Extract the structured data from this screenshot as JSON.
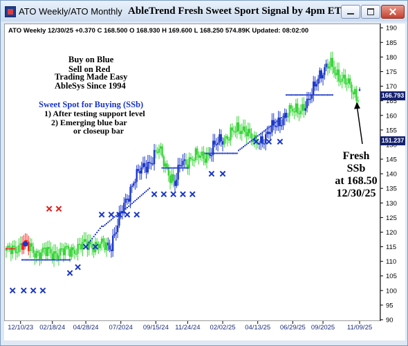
{
  "window": {
    "title": "ATO Weekly/ATO Monthly",
    "chart_title": "AbleTrend Fresh Sweet Sport Signal by 4pm ET"
  },
  "header": "ATO  Weekly 12/30/25 +0.370 C 168.500 O 168.930 H 169.600 L 168.250 574.89K Updated: 08:02:00",
  "legend": [
    {
      "text": "Buy on Blue",
      "color": "#1a36c8"
    },
    {
      "text": "Sell on Red",
      "color": "#e02020"
    },
    {
      "text": "Trading Made Easy",
      "color": "#2e9a2e"
    },
    {
      "text": "AbleSys Since 1994",
      "color": "#2e9a2e"
    }
  ],
  "sweet_spot": {
    "title": "Sweet Spot for Buying (SSb)",
    "lines": [
      "1) After testing support level",
      "2) Emerging blue bar",
      "or closeup bar"
    ]
  },
  "annotation": {
    "lines": [
      "Fresh",
      "SSb",
      "at 168.50",
      "12/30/25"
    ]
  },
  "price_labels": [
    {
      "text": "166.793",
      "value": 166.793
    },
    {
      "text": "151.237",
      "value": 151.237
    }
  ],
  "colors": {
    "up": "#1a36c8",
    "down": "#ff2020",
    "neutral": "#39d439",
    "cross_buy": "#1a36c8",
    "cross_sell": "#e02020"
  },
  "chart_data": {
    "type": "candlestick",
    "yticks": [
      90,
      95,
      100,
      105,
      110,
      115,
      120,
      125,
      130,
      135,
      140,
      145,
      150,
      155,
      160,
      165,
      170,
      175,
      180,
      185,
      190
    ],
    "ylim": [
      90,
      191
    ],
    "xlabels": [
      "12/10/23",
      "02/18/24",
      "04/28/24",
      "07/2024",
      "09/15/24",
      "11/24/24",
      "02/02/25",
      "04/13/25",
      "06/29/25",
      "09/2025",
      "11/09/25"
    ],
    "anchors": [
      [
        0,
        113
      ],
      [
        10,
        116
      ],
      [
        20,
        113
      ],
      [
        35,
        113
      ],
      [
        52,
        116
      ],
      [
        65,
        115
      ],
      [
        80,
        138
      ],
      [
        96,
        148
      ],
      [
        106,
        136
      ],
      [
        110,
        144
      ],
      [
        128,
        147
      ],
      [
        135,
        152
      ],
      [
        150,
        156
      ],
      [
        156,
        150
      ],
      [
        165,
        154
      ],
      [
        175,
        160
      ],
      [
        190,
        164
      ],
      [
        196,
        174
      ],
      [
        204,
        177
      ],
      [
        212,
        172
      ],
      [
        220,
        167
      ]
    ],
    "sell_crosses": [
      [
        27,
        128
      ],
      [
        33,
        128
      ]
    ],
    "buy_crosses": [
      [
        4,
        100
      ],
      [
        11,
        100
      ],
      [
        17,
        100
      ],
      [
        23,
        100
      ],
      [
        40,
        106
      ],
      [
        45,
        108
      ],
      [
        50,
        115
      ],
      [
        56,
        115
      ],
      [
        60,
        126
      ],
      [
        66,
        126
      ],
      [
        71,
        126
      ],
      [
        76,
        126
      ],
      [
        82,
        126
      ],
      [
        93,
        133
      ],
      [
        99,
        133
      ],
      [
        105,
        133
      ],
      [
        111,
        133
      ],
      [
        117,
        133
      ],
      [
        129,
        140
      ],
      [
        136,
        140
      ],
      [
        157,
        151
      ],
      [
        165,
        151
      ],
      [
        172,
        151
      ]
    ],
    "support_segments": [
      [
        10,
        40,
        110.5
      ],
      [
        98,
        114,
        142
      ],
      [
        125,
        145,
        147
      ],
      [
        176,
        205,
        167
      ]
    ],
    "support_ramps": [
      [
        50,
        115,
        60,
        122
      ],
      [
        61,
        122,
        72,
        127
      ],
      [
        73,
        127,
        90,
        135
      ],
      [
        146,
        148,
        175,
        160
      ]
    ],
    "last": {
      "open": 168.93,
      "high": 169.6,
      "low": 168.25,
      "close": 168.5
    }
  }
}
